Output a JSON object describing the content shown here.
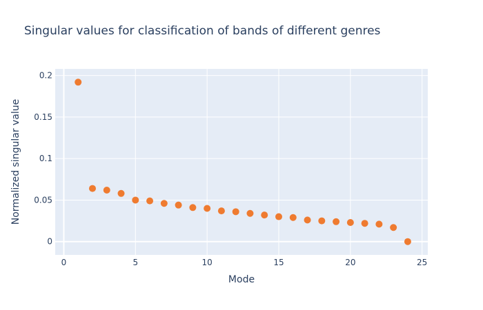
{
  "chart_data": {
    "type": "scatter",
    "title": "Singular values for classification of bands of different genres",
    "xlabel": "Mode",
    "ylabel": "Normalized singular value",
    "xlim": [
      -0.6,
      25.4
    ],
    "ylim": [
      -0.016,
      0.208
    ],
    "x_ticks": [
      0,
      5,
      10,
      15,
      20,
      25
    ],
    "y_ticks": [
      0,
      0.05,
      0.1,
      0.15,
      0.2
    ],
    "x_tick_labels": [
      "0",
      "5",
      "10",
      "15",
      "20",
      "25"
    ],
    "y_tick_labels": [
      "0",
      "0.05",
      "0.1",
      "0.15",
      "0.2"
    ],
    "grid": true,
    "legend": "none",
    "colors": {
      "plot_bg": "#e5ecf6",
      "grid": "#ffffff",
      "marker": "#ef7b30",
      "text": "#2a3f5f"
    },
    "series": [
      {
        "x": [
          1,
          2,
          3,
          4,
          5,
          6,
          7,
          8,
          9,
          10,
          11,
          12,
          13,
          14,
          15,
          16,
          17,
          18,
          19,
          20,
          21,
          22,
          23,
          24
        ],
        "y": [
          0.192,
          0.064,
          0.062,
          0.058,
          0.05,
          0.049,
          0.046,
          0.044,
          0.041,
          0.04,
          0.037,
          0.036,
          0.034,
          0.032,
          0.03,
          0.029,
          0.026,
          0.025,
          0.024,
          0.023,
          0.022,
          0.021,
          0.017,
          0.0
        ]
      }
    ]
  }
}
